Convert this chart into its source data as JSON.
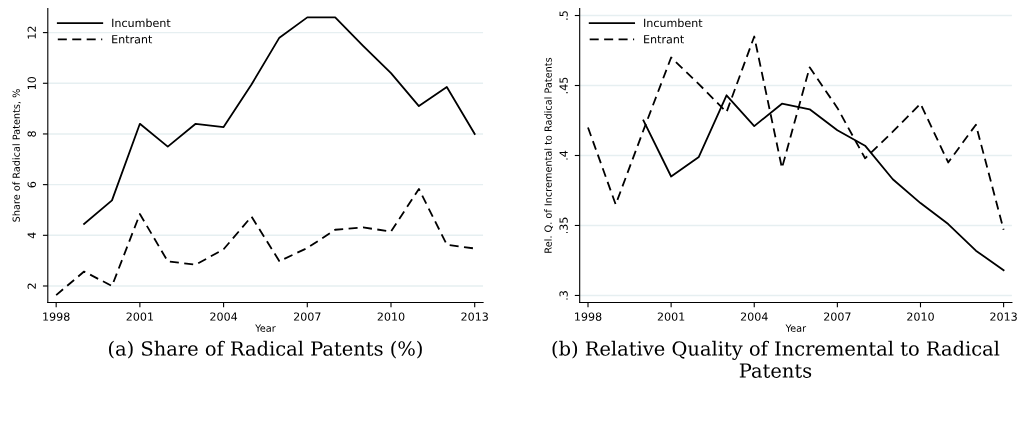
{
  "chart_data": [
    {
      "type": "line",
      "title": "(a) Share of Radical Patents (%)",
      "xlabel": "Year",
      "ylabel": "Share of Radical Patents, %",
      "xlim": [
        1997.7,
        2013.3
      ],
      "xticks": [
        1998,
        2001,
        2004,
        2007,
        2010,
        2013
      ],
      "ylim": [
        1.35,
        12.95
      ],
      "yticks": [
        2,
        4,
        6,
        8,
        10,
        12
      ],
      "grid": "y",
      "legend": "top left",
      "series": [
        {
          "name": "Incumbent",
          "color": "#000000",
          "line_style": "solid",
          "x": [
            1999,
            2000,
            2001,
            2002,
            2003,
            2004,
            2005,
            2006,
            2007,
            2008,
            2009,
            2010,
            2011,
            2012,
            2013
          ],
          "values": [
            4.45,
            5.38,
            8.4,
            7.5,
            8.4,
            8.27,
            9.95,
            11.8,
            12.6,
            12.6,
            11.48,
            10.4,
            9.1,
            9.85,
            8.0
          ]
        },
        {
          "name": "Entrant",
          "color": "#000000",
          "line_style": "dashed",
          "x": [
            1998,
            1999,
            2000,
            2001,
            2002,
            2003,
            2004,
            2005,
            2006,
            2007,
            2008,
            2009,
            2010,
            2011,
            2012,
            2013
          ],
          "values": [
            1.64,
            2.57,
            2.0,
            4.84,
            2.97,
            2.84,
            3.45,
            4.74,
            2.98,
            3.5,
            4.22,
            4.31,
            4.15,
            5.83,
            3.63,
            3.48
          ]
        }
      ]
    },
    {
      "type": "line",
      "title": "(b) Relative Quality of Incremental to Radical Patents",
      "xlabel": "Year",
      "ylabel": "Rel. Q. of Incremental to Radical Patents",
      "xlim": [
        1997.7,
        2013.3
      ],
      "xticks": [
        1998,
        2001,
        2004,
        2007,
        2010,
        2013
      ],
      "ylim": [
        0.295,
        0.505
      ],
      "yticks": [
        {
          "value": 0.3,
          "label": ".3"
        },
        {
          "value": 0.35,
          "label": ".35"
        },
        {
          "value": 0.4,
          "label": ".4"
        },
        {
          "value": 0.45,
          "label": ".45"
        },
        {
          "value": 0.5,
          "label": ".5"
        }
      ],
      "grid": "y",
      "legend": "top left",
      "series": [
        {
          "name": "Incumbent",
          "color": "#000000",
          "line_style": "solid",
          "x": [
            2000,
            2001,
            2002,
            2003,
            2004,
            2005,
            2006,
            2007,
            2008,
            2009,
            2010,
            2011,
            2012,
            2013
          ],
          "values": [
            0.425,
            0.385,
            0.399,
            0.443,
            0.421,
            0.437,
            0.433,
            0.418,
            0.407,
            0.383,
            0.366,
            0.351,
            0.332,
            0.318
          ]
        },
        {
          "name": "Entrant",
          "color": "#000000",
          "line_style": "dashed",
          "x": [
            1998,
            1999,
            2000,
            2001,
            2002,
            2003,
            2004,
            2005,
            2006,
            2007,
            2008,
            2009,
            2010,
            2011,
            2012,
            2013
          ],
          "values": [
            0.42,
            0.365,
            0.418,
            0.47,
            0.451,
            0.431,
            0.485,
            0.391,
            0.463,
            0.434,
            0.398,
            0.417,
            0.437,
            0.395,
            0.422,
            0.347
          ]
        }
      ]
    }
  ]
}
